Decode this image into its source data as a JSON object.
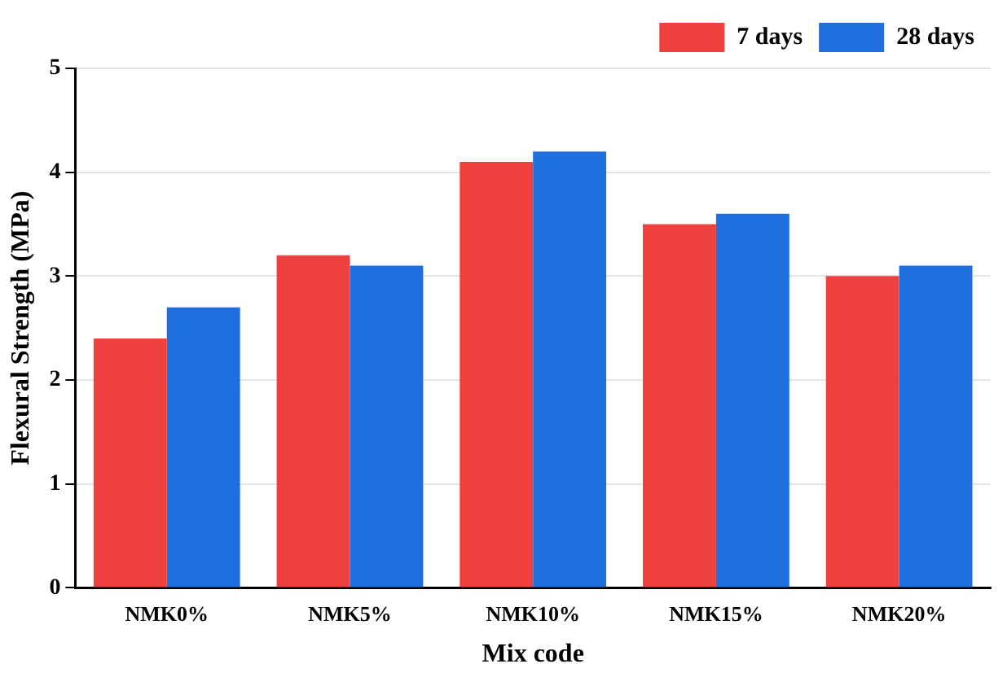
{
  "chart_data": {
    "type": "bar",
    "xlabel": "Mix code",
    "ylabel": "Flexural Strength (MPa)",
    "categories": [
      "NMK0%",
      "NMK5%",
      "NMK10%",
      "NMK15%",
      "NMK20%"
    ],
    "series": [
      {
        "name": "7 days",
        "color": "#ef4040",
        "values": [
          2.4,
          3.2,
          4.1,
          3.5,
          3.0
        ]
      },
      {
        "name": "28 days",
        "color": "#1f6fdf",
        "values": [
          2.7,
          3.1,
          4.2,
          3.6,
          3.1
        ]
      }
    ],
    "ylim": [
      0,
      5
    ],
    "yticks": [
      0,
      1,
      2,
      3,
      4,
      5
    ],
    "grid": "y",
    "legend": "top right"
  }
}
